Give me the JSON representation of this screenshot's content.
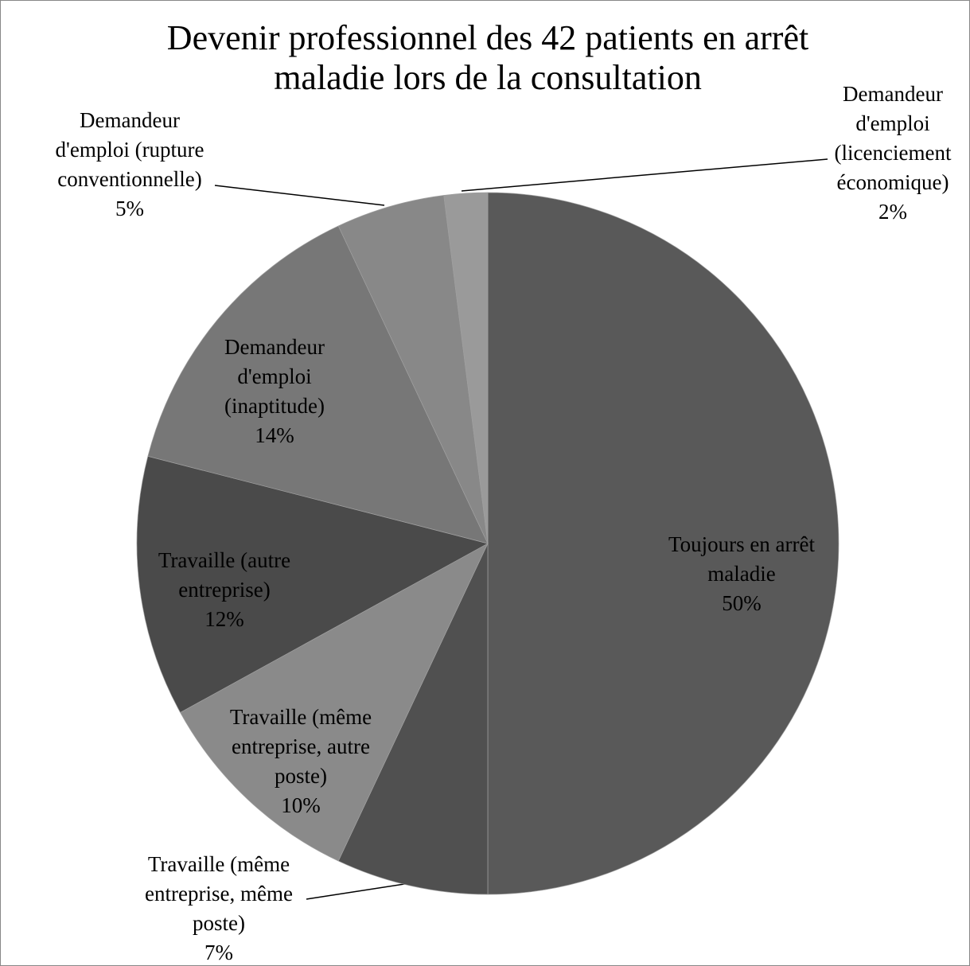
{
  "chart_data": {
    "type": "pie",
    "title": "Devenir professionnel des 42 patients en arrêt\nmaladie lors de la consultation",
    "categories": [
      "Toujours en arrêt\nmaladie",
      "Travaille (même\nentreprise, même\nposte)",
      "Travaille (même\nentreprise, autre\nposte)",
      "Travaille (autre\nentreprise)",
      "Demandeur\nd'emploi\n(inaptitude)",
      "Demandeur\nd'emploi (rupture\nconventionnelle)",
      "Demandeur\nd'emploi\n(licenciement\néconomique)"
    ],
    "values": [
      50,
      7,
      10,
      12,
      14,
      5,
      2
    ],
    "value_labels": [
      "50%",
      "7%",
      "10%",
      "12%",
      "14%",
      "5%",
      "2%"
    ],
    "colors": [
      "#595959",
      "#505050",
      "#8a8a8a",
      "#4a4a4a",
      "#777777",
      "#888888",
      "#9a9a9a"
    ]
  }
}
